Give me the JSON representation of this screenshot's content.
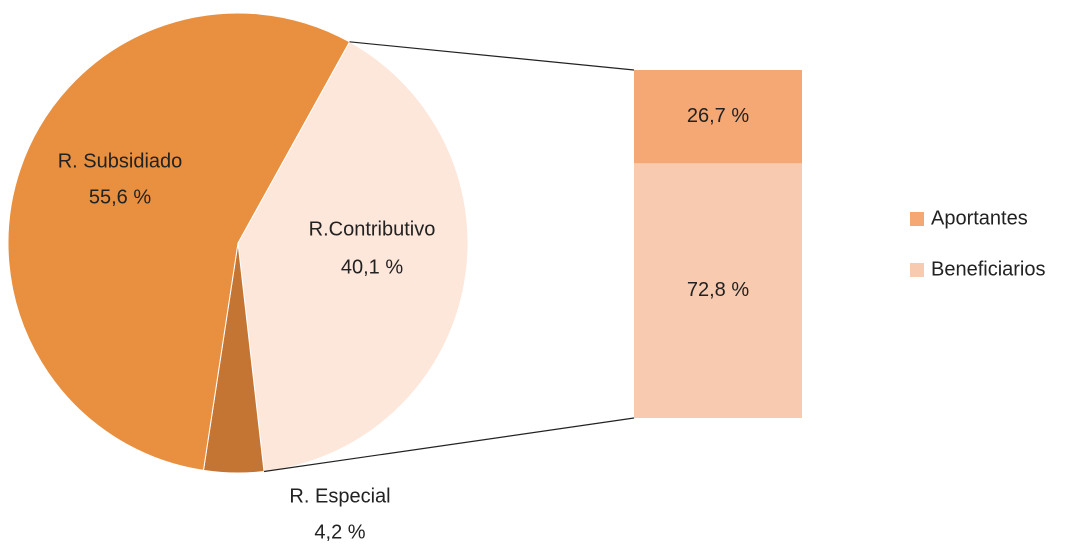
{
  "chart_data": {
    "type": "pie",
    "categories": [
      "R.Contributivo",
      "R. Especial",
      "R. Subsidiado"
    ],
    "values": [
      40.1,
      4.2,
      55.6
    ],
    "value_labels": [
      "40,1  %",
      "4,2 %",
      "55,6 %"
    ],
    "colors": [
      "#fde6da",
      "#c47534",
      "#e8903f"
    ],
    "bar": {
      "categories": [
        "Aportantes",
        "Beneficiarios"
      ],
      "values": [
        26.7,
        72.8
      ],
      "value_labels": [
        "26,7 %",
        "72,8 %"
      ],
      "colors": [
        "#f5a874",
        "#f8cbb0"
      ]
    }
  }
}
